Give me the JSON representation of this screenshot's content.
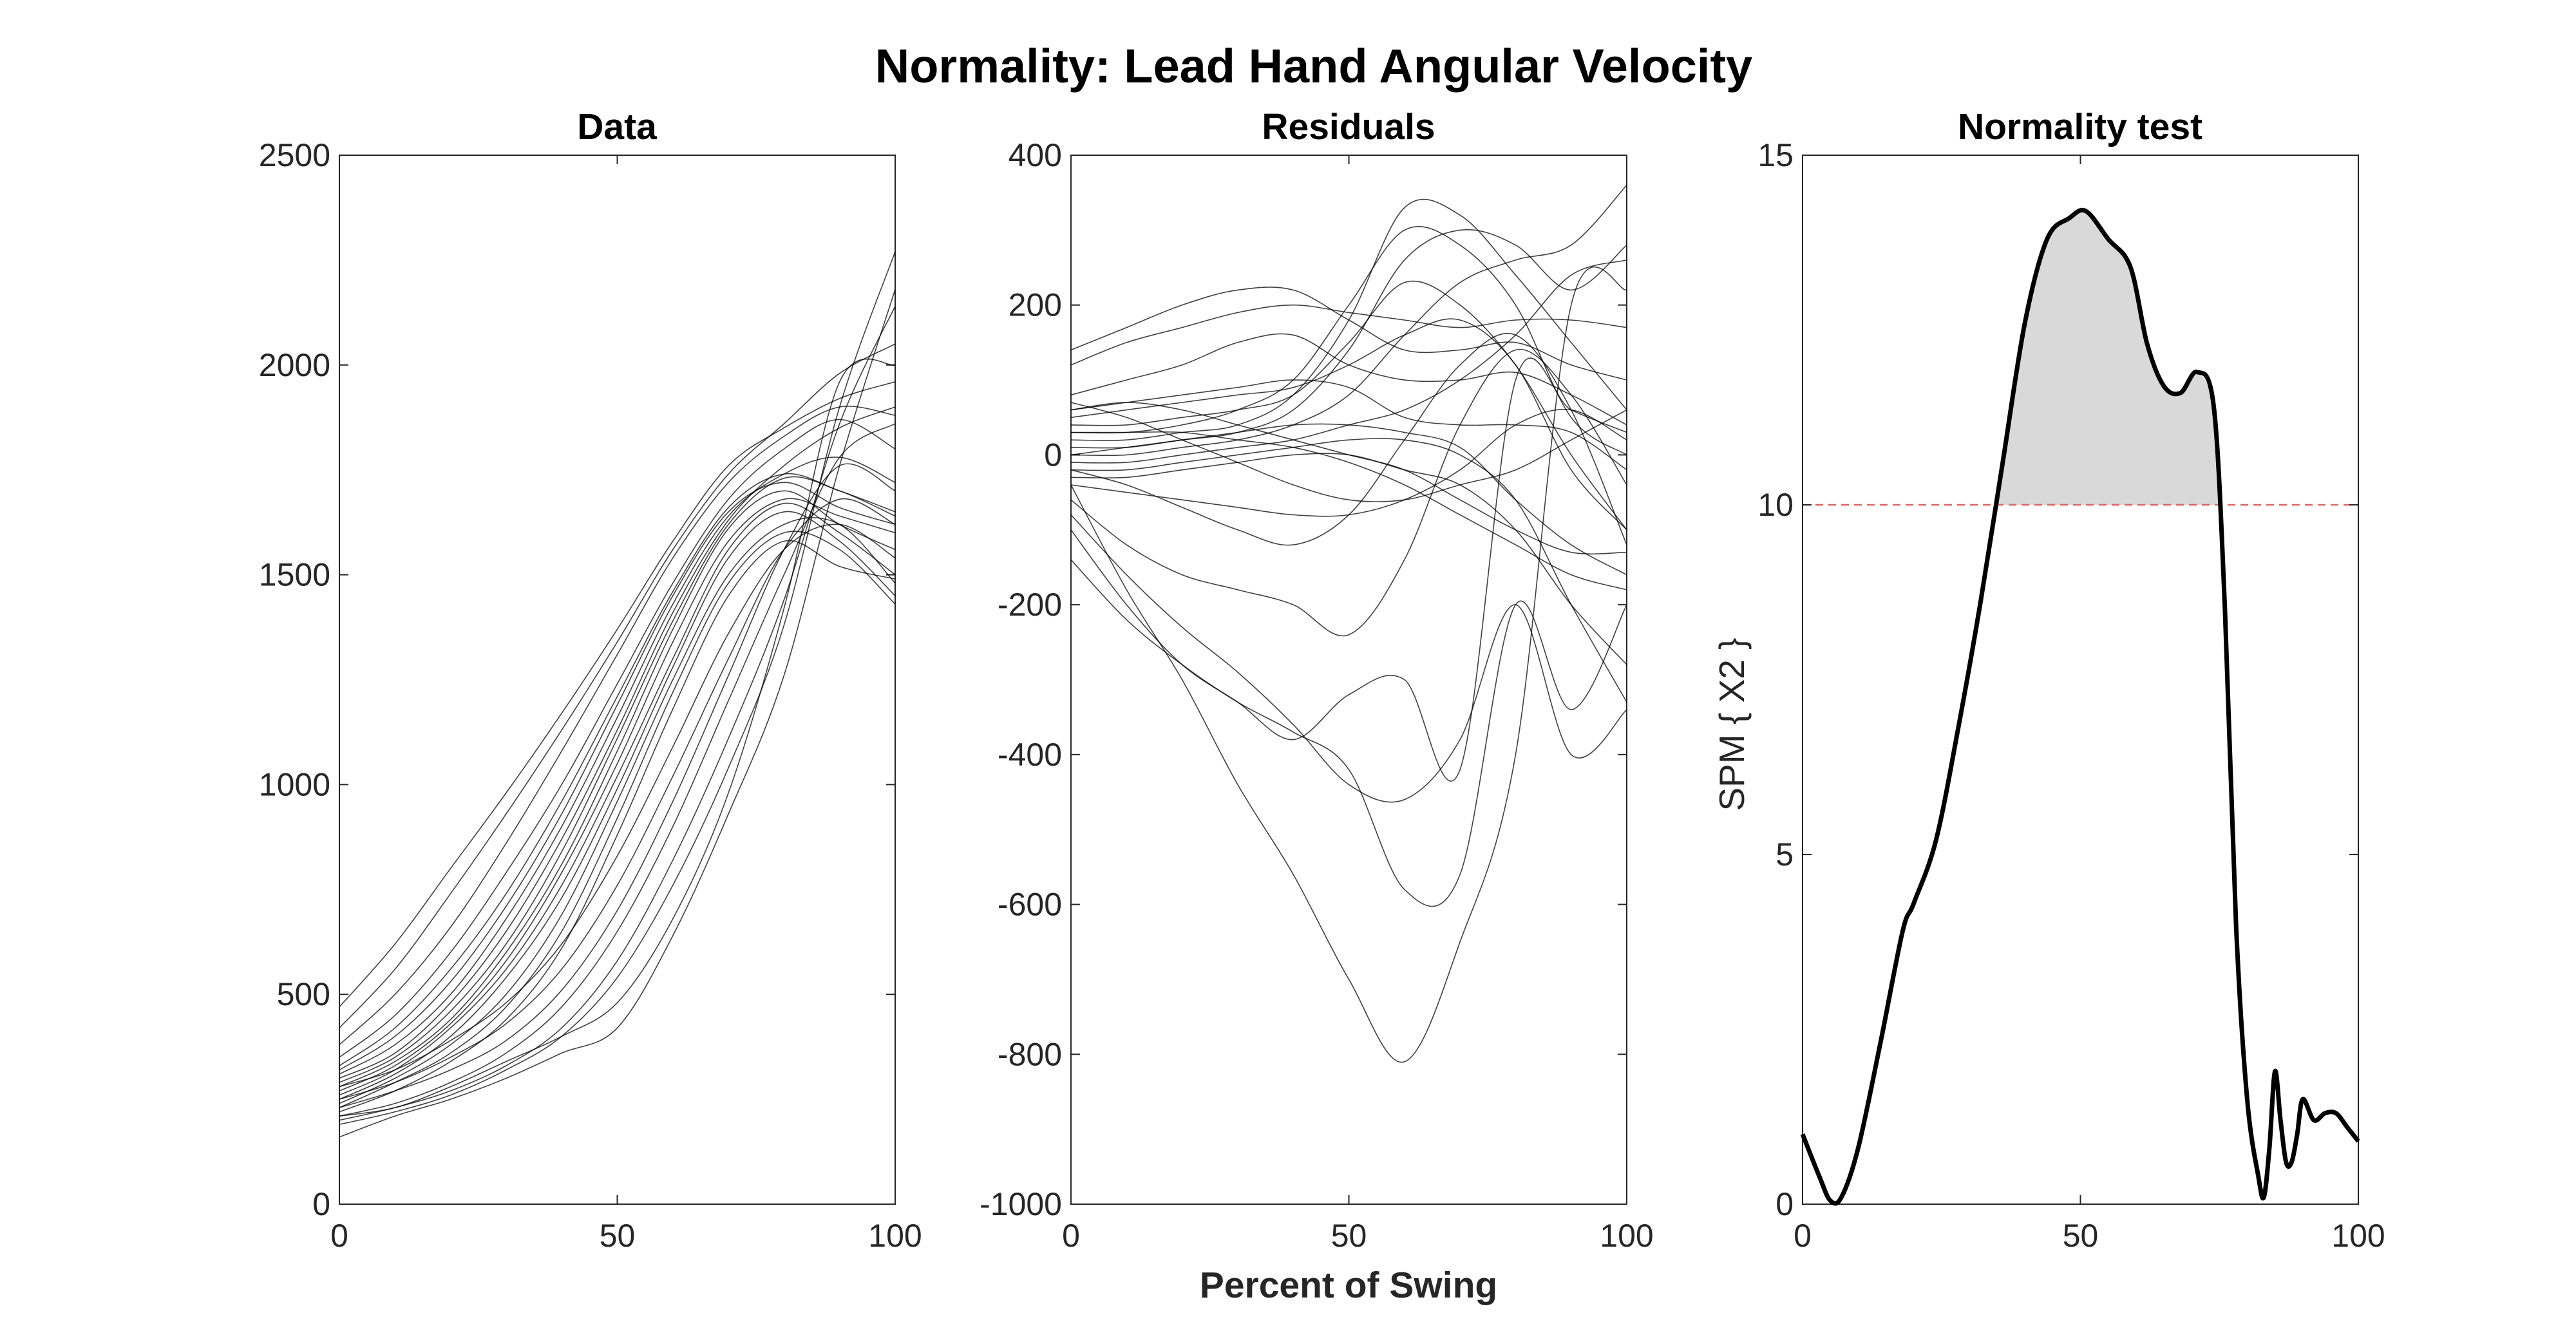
{
  "title": "Normality: Lead Hand Angular Velocity",
  "xlabel": "Percent of Swing",
  "chart_data": [
    {
      "type": "line",
      "title": "Data",
      "xlabel": "",
      "ylabel": "",
      "xlim": [
        0,
        100
      ],
      "ylim": [
        0,
        2500
      ],
      "xticks": [
        0,
        50,
        100
      ],
      "yticks": [
        0,
        500,
        1000,
        1500,
        2000,
        2500
      ],
      "x": [
        0,
        10,
        20,
        30,
        40,
        50,
        60,
        70,
        80,
        90,
        100
      ],
      "series": [
        {
          "values": [
            470,
            620,
            800,
            980,
            1170,
            1370,
            1580,
            1760,
            1850,
            1920,
            1960
          ]
        },
        {
          "values": [
            420,
            560,
            740,
            930,
            1130,
            1340,
            1560,
            1740,
            1860,
            1980,
            2050
          ]
        },
        {
          "values": [
            380,
            500,
            660,
            860,
            1080,
            1310,
            1540,
            1720,
            1830,
            1900,
            1880
          ]
        },
        {
          "values": [
            350,
            450,
            600,
            790,
            1000,
            1240,
            1480,
            1680,
            1800,
            1870,
            1800
          ]
        },
        {
          "values": [
            330,
            420,
            560,
            740,
            960,
            1210,
            1460,
            1660,
            1740,
            1700,
            1650
          ]
        },
        {
          "values": [
            320,
            400,
            530,
            710,
            930,
            1190,
            1450,
            1650,
            1720,
            1660,
            1620
          ]
        },
        {
          "values": [
            310,
            380,
            500,
            680,
            900,
            1160,
            1430,
            1640,
            1740,
            1780,
            1720
          ]
        },
        {
          "values": [
            300,
            360,
            480,
            650,
            870,
            1130,
            1410,
            1630,
            1760,
            1850,
            1900
          ]
        },
        {
          "values": [
            290,
            350,
            460,
            620,
            840,
            1110,
            1390,
            1620,
            1730,
            1700,
            1640
          ]
        },
        {
          "values": [
            280,
            340,
            440,
            600,
            810,
            1080,
            1370,
            1610,
            1700,
            1620,
            1560
          ]
        },
        {
          "values": [
            270,
            330,
            430,
            580,
            790,
            1050,
            1340,
            1580,
            1680,
            1640,
            1600
          ]
        },
        {
          "values": [
            260,
            320,
            420,
            560,
            760,
            1020,
            1300,
            1560,
            1670,
            1600,
            1500
          ]
        },
        {
          "values": [
            250,
            310,
            400,
            540,
            730,
            990,
            1280,
            1540,
            1650,
            1580,
            1450
          ]
        },
        {
          "values": [
            240,
            300,
            380,
            500,
            690,
            960,
            1250,
            1500,
            1620,
            1620,
            1480
          ]
        },
        {
          "values": [
            230,
            290,
            360,
            470,
            650,
            920,
            1220,
            1480,
            1600,
            1560,
            1430
          ]
        },
        {
          "values": [
            220,
            270,
            340,
            440,
            610,
            880,
            1180,
            1450,
            1580,
            1520,
            1490
          ]
        },
        {
          "values": [
            280,
            320,
            390,
            480,
            620,
            830,
            1090,
            1360,
            1560,
            1620,
            1540
          ]
        },
        {
          "values": [
            250,
            290,
            350,
            430,
            560,
            760,
            1020,
            1300,
            1560,
            1680,
            1620
          ]
        },
        {
          "values": [
            230,
            270,
            320,
            390,
            510,
            700,
            960,
            1260,
            1560,
            1760,
            1700
          ]
        },
        {
          "values": [
            210,
            240,
            290,
            360,
            470,
            650,
            900,
            1200,
            1500,
            1780,
            1860
          ]
        },
        {
          "values": [
            200,
            230,
            270,
            330,
            420,
            580,
            820,
            1110,
            1440,
            1860,
            2140
          ]
        },
        {
          "values": [
            190,
            220,
            260,
            320,
            400,
            540,
            760,
            1040,
            1380,
            1900,
            2270
          ]
        },
        {
          "values": [
            160,
            210,
            250,
            300,
            360,
            420,
            640,
            930,
            1260,
            1760,
            2180
          ]
        },
        {
          "values": [
            210,
            230,
            280,
            340,
            400,
            480,
            680,
            980,
            1420,
            1960,
            2000
          ]
        }
      ]
    },
    {
      "type": "line",
      "title": "Residuals",
      "xlabel": "",
      "ylabel": "",
      "xlim": [
        0,
        100
      ],
      "ylim": [
        -1000,
        400
      ],
      "xticks": [
        0,
        50,
        100
      ],
      "yticks": [
        -1000,
        -800,
        -600,
        -400,
        -200,
        0,
        200,
        400
      ],
      "x": [
        0,
        10,
        20,
        30,
        40,
        50,
        60,
        70,
        80,
        90,
        100
      ],
      "series": [
        {
          "values": [
            140,
            170,
            200,
            220,
            220,
            180,
            140,
            140,
            150,
            120,
            100
          ]
        },
        {
          "values": [
            120,
            150,
            170,
            190,
            200,
            190,
            180,
            170,
            180,
            180,
            170
          ]
        },
        {
          "values": [
            80,
            100,
            120,
            150,
            160,
            120,
            100,
            100,
            110,
            80,
            40
          ]
        },
        {
          "values": [
            60,
            70,
            80,
            90,
            100,
            90,
            50,
            40,
            40,
            30,
            -20
          ]
        },
        {
          "values": [
            50,
            60,
            70,
            80,
            90,
            120,
            160,
            180,
            120,
            -20,
            -100
          ]
        },
        {
          "values": [
            40,
            40,
            50,
            60,
            80,
            150,
            230,
            200,
            120,
            0,
            -100
          ]
        },
        {
          "values": [
            30,
            30,
            40,
            60,
            100,
            200,
            300,
            280,
            200,
            50,
            0
          ]
        },
        {
          "values": [
            20,
            20,
            30,
            40,
            80,
            180,
            330,
            320,
            240,
            150,
            60
          ]
        },
        {
          "values": [
            10,
            10,
            20,
            30,
            60,
            140,
            260,
            300,
            280,
            220,
            280
          ]
        },
        {
          "values": [
            0,
            0,
            10,
            20,
            40,
            80,
            160,
            230,
            260,
            280,
            360
          ]
        },
        {
          "values": [
            -10,
            -10,
            0,
            10,
            20,
            40,
            60,
            100,
            160,
            240,
            260
          ]
        },
        {
          "values": [
            -20,
            -20,
            -10,
            0,
            10,
            20,
            20,
            0,
            -60,
            -200,
            -330
          ]
        },
        {
          "values": [
            -30,
            -30,
            -20,
            -10,
            0,
            0,
            -20,
            -40,
            -100,
            -200,
            -280
          ]
        },
        {
          "values": [
            0,
            10,
            20,
            30,
            40,
            40,
            30,
            10,
            -60,
            -120,
            -160
          ]
        },
        {
          "values": [
            30,
            30,
            30,
            20,
            10,
            -10,
            -40,
            -80,
            -120,
            -160,
            -180
          ]
        },
        {
          "values": [
            60,
            70,
            60,
            40,
            20,
            0,
            -20,
            -60,
            -100,
            -130,
            -130
          ]
        },
        {
          "values": [
            -40,
            -50,
            -60,
            -70,
            -80,
            -80,
            -60,
            -20,
            40,
            60,
            20
          ]
        },
        {
          "values": [
            70,
            50,
            20,
            -10,
            -40,
            -60,
            -60,
            -40,
            -20,
            20,
            60
          ]
        },
        {
          "values": [
            -20,
            -40,
            -70,
            -100,
            -120,
            -80,
            20,
            120,
            160,
            60,
            -120
          ]
        },
        {
          "values": [
            -60,
            -120,
            -160,
            -180,
            -200,
            -240,
            -140,
            40,
            140,
            80,
            -40
          ]
        },
        {
          "values": [
            -80,
            -160,
            -230,
            -290,
            -360,
            -440,
            -460,
            -380,
            -200,
            -400,
            -340
          ]
        },
        {
          "values": [
            -140,
            -220,
            -280,
            -330,
            -370,
            -420,
            -580,
            -560,
            -200,
            -340,
            -200
          ]
        },
        {
          "values": [
            -100,
            -200,
            -280,
            -330,
            -380,
            -320,
            -300,
            -420,
            100,
            60,
            30
          ]
        },
        {
          "values": [
            -40,
            -180,
            -300,
            -440,
            -560,
            -700,
            -810,
            -650,
            -400,
            200,
            220
          ]
        }
      ]
    },
    {
      "type": "area",
      "title": "Normality test",
      "xlabel": "",
      "ylabel": "SPM { X2 }",
      "xlim": [
        0,
        100
      ],
      "ylim": [
        0,
        15
      ],
      "xticks": [
        0,
        50,
        100
      ],
      "yticks": [
        0,
        5,
        10,
        15
      ],
      "threshold": 10,
      "x": [
        0,
        3,
        5,
        7,
        10,
        14,
        18,
        20,
        24,
        28,
        32,
        36,
        40,
        44,
        48,
        51,
        55,
        59,
        62,
        65,
        68,
        71,
        74,
        76,
        78,
        80,
        82,
        83,
        84,
        85,
        86,
        87,
        88,
        89,
        90,
        92,
        94,
        96,
        98,
        100
      ],
      "series": [
        {
          "values": [
            1.0,
            0.4,
            0.05,
            0.1,
            0.8,
            2.3,
            3.9,
            4.3,
            5.2,
            6.8,
            8.6,
            10.6,
            12.6,
            13.8,
            14.1,
            14.2,
            13.8,
            13.4,
            12.3,
            11.7,
            11.6,
            11.9,
            11.4,
            8.5,
            4.0,
            1.5,
            0.4,
            0.1,
            0.8,
            1.9,
            1.2,
            0.6,
            0.6,
            1.0,
            1.5,
            1.2,
            1.3,
            1.3,
            1.1,
            0.9
          ]
        }
      ]
    }
  ]
}
